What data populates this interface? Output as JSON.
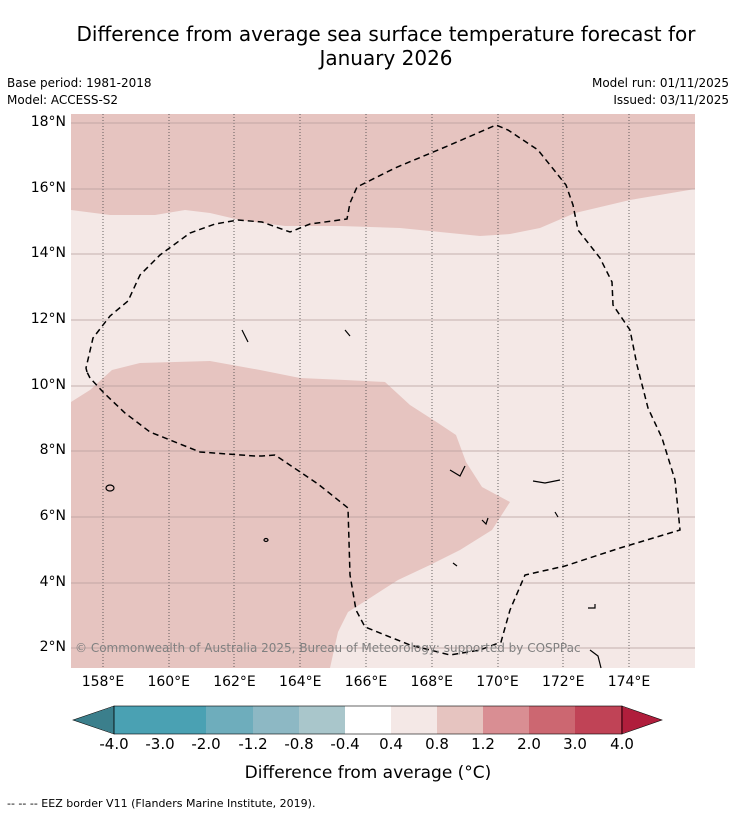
{
  "title": {
    "line1": "Difference from average sea surface temperature forecast for",
    "line2": "January 2026"
  },
  "meta": {
    "base_period": "Base period: 1981-2018",
    "model": "Model: ACCESS-S2",
    "model_run": "Model run: 01/11/2025",
    "issued": "Issued: 03/11/2025"
  },
  "map": {
    "lat_labels": [
      "18°N",
      "16°N",
      "14°N",
      "12°N",
      "10°N",
      "8°N",
      "6°N",
      "4°N",
      "2°N"
    ],
    "lon_labels": [
      "158°E",
      "160°E",
      "162°E",
      "164°E",
      "166°E",
      "168°E",
      "170°E",
      "172°E",
      "174°E"
    ],
    "lat_values": [
      18,
      16,
      14,
      12,
      10,
      8,
      6,
      4,
      2
    ],
    "lon_values": [
      158,
      160,
      162,
      164,
      166,
      168,
      170,
      172,
      174
    ],
    "copyright": "© Commonwealth of Australia 2025, Bureau of Meteorology; supported by COSPPac",
    "fill_colors": {
      "band_0p8_1p2": "#e6c4c0",
      "band_0p4_0p8": "#f4e8e6"
    }
  },
  "colorbar": {
    "tick_labels": [
      "-4.0",
      "-3.0",
      "-2.0",
      "-1.2",
      "-0.8",
      "-0.4",
      "0.4",
      "0.8",
      "1.2",
      "2.0",
      "3.0",
      "4.0"
    ],
    "colors": [
      "#3b7f8c",
      "#4aa1b3",
      "#6eadbc",
      "#8db8c4",
      "#a9c6cb",
      "#cfd9dc",
      "#ffffff",
      "#f4e8e6",
      "#e6c4c0",
      "#d98e93",
      "#cc6771",
      "#c04356",
      "#b01e3c"
    ],
    "title": "Difference from average (°C)"
  },
  "footnote": "--  --  -- EEZ border V11 (Flanders Marine Institute, 2019)."
}
